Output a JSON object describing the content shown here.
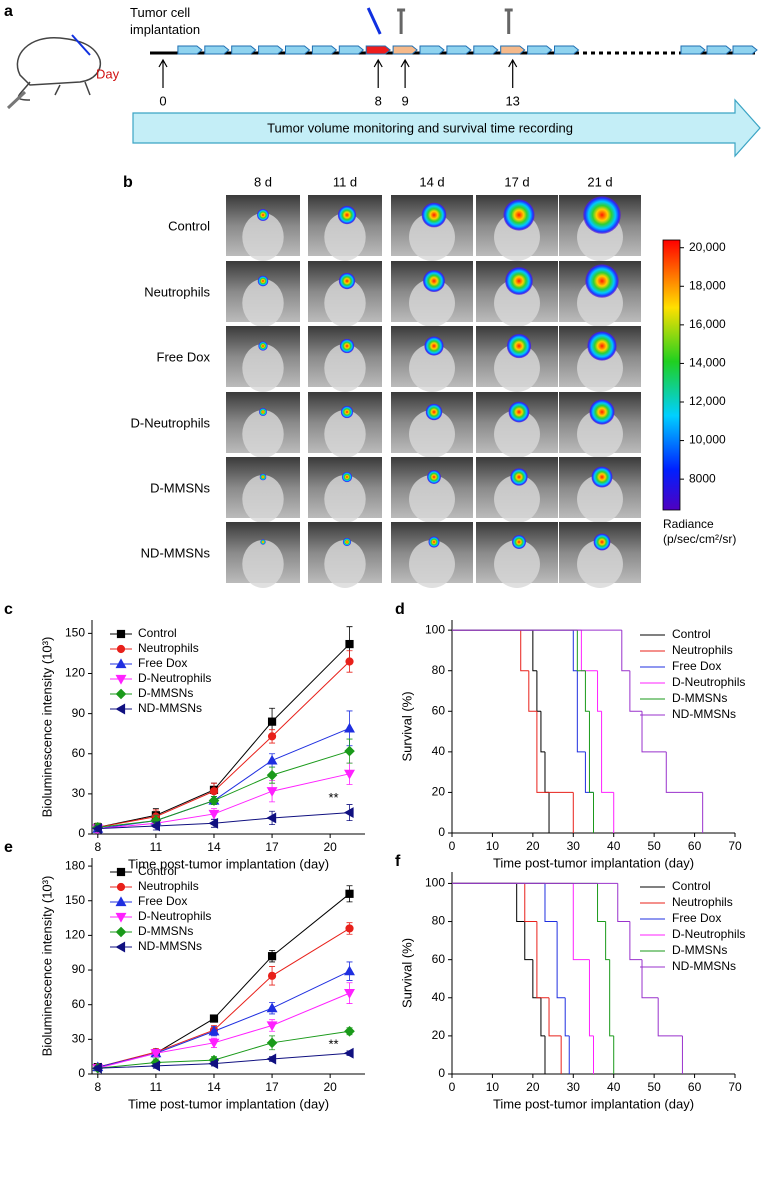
{
  "timeline": {
    "label": "a",
    "title": "Tumor cell implantation",
    "day_label": "Day",
    "days": [
      0,
      8,
      9,
      13
    ],
    "banner": "Tumor volume monitoring and survival time recording"
  },
  "imaging": {
    "label": "b",
    "timepoints": [
      "8 d",
      "11 d",
      "14 d",
      "17 d",
      "21 d"
    ],
    "groups": [
      "Control",
      "Neutrophils",
      "Free Dox",
      "D-Neutrophils",
      "D-MMSNs",
      "ND-MMSNs"
    ],
    "colorbar": {
      "title": "Radiance",
      "unit": "(p/sec/cm²/sr)",
      "lim": [
        6400,
        20400
      ],
      "ticks": [
        {
          "value": 20000,
          "label": "20,000"
        },
        {
          "value": 18000,
          "label": "18,000"
        },
        {
          "value": 16000,
          "label": "16,000"
        },
        {
          "value": 14000,
          "label": "14,000"
        },
        {
          "value": 12000,
          "label": "12,000"
        },
        {
          "value": 10000,
          "label": "10,000"
        },
        8000
      ]
    }
  },
  "chart_data": [
    {
      "type": "line",
      "label": "c",
      "ylabel": "Bioluminescence intensity (10³)",
      "xlabel": "Time post-tumor implantation (day)",
      "x": [
        8,
        11,
        14,
        17,
        21
      ],
      "xlim": [
        7.7,
        21.8
      ],
      "xticks": [
        8,
        11,
        14,
        17,
        20
      ],
      "ylim": [
        0,
        160
      ],
      "yticks": [
        0,
        30,
        60,
        90,
        120,
        150
      ],
      "legend": "upper left",
      "annotation": "**",
      "series": [
        {
          "name": "Control",
          "color": "#000000",
          "marker": "square",
          "values": [
            5,
            14,
            33,
            84,
            142
          ],
          "errors": [
            3,
            5,
            5,
            10,
            13
          ]
        },
        {
          "name": "Neutrophils",
          "color": "#e8201a",
          "marker": "circle",
          "values": [
            5,
            13,
            32,
            73,
            129
          ],
          "errors": [
            3,
            5,
            6,
            5,
            8
          ]
        },
        {
          "name": "Free Dox",
          "color": "#1f2fe0",
          "marker": "triangle-up",
          "values": [
            4,
            10,
            25,
            55,
            79
          ],
          "errors": [
            3,
            4,
            3,
            5,
            13
          ]
        },
        {
          "name": "D-Neutrophils",
          "color": "#ff20ff",
          "marker": "triangle-down",
          "values": [
            4,
            8,
            15,
            32,
            45
          ],
          "errors": [
            3,
            3,
            4,
            8,
            8
          ]
        },
        {
          "name": "D-MMSNs",
          "color": "#1a9a1a",
          "marker": "diamond",
          "values": [
            5,
            10,
            25,
            44,
            62
          ],
          "errors": [
            3,
            4,
            3,
            6,
            9
          ]
        },
        {
          "name": "ND-MMSNs",
          "color": "#101080",
          "marker": "triangle-left",
          "values": [
            4,
            6,
            8,
            12,
            16
          ],
          "errors": [
            2,
            3,
            3,
            5,
            6
          ]
        }
      ]
    },
    {
      "type": "step",
      "label": "d",
      "ylabel": "Survival (%)",
      "xlabel": "Time post-tumor implantation (day)",
      "xlim": [
        0,
        70
      ],
      "xticks": [
        0,
        10,
        20,
        30,
        40,
        50,
        60,
        70
      ],
      "ylim": [
        0,
        105
      ],
      "yticks": [
        0,
        20,
        40,
        60,
        80,
        100
      ],
      "legend": "upper right",
      "series": [
        {
          "name": "Control",
          "color": "#000000",
          "x": [
            0,
            20,
            21,
            22,
            23,
            24
          ],
          "values": [
            100,
            80,
            60,
            40,
            20,
            0
          ]
        },
        {
          "name": "Neutrophils",
          "color": "#e8201a",
          "x": [
            0,
            17,
            19,
            21,
            30
          ],
          "values": [
            100,
            80,
            60,
            20,
            0
          ]
        },
        {
          "name": "Free Dox",
          "color": "#1f2fe0",
          "x": [
            0,
            30,
            31,
            33,
            35
          ],
          "values": [
            100,
            80,
            40,
            20,
            0
          ]
        },
        {
          "name": "D-Neutrophils",
          "color": "#ff20ff",
          "x": [
            0,
            32,
            36,
            37,
            40
          ],
          "values": [
            100,
            80,
            60,
            20,
            0
          ]
        },
        {
          "name": "D-MMSNs",
          "color": "#1a9a1a",
          "x": [
            0,
            31,
            33,
            34,
            35
          ],
          "values": [
            100,
            80,
            60,
            20,
            0
          ]
        },
        {
          "name": "ND-MMSNs",
          "color": "#9932cc",
          "x": [
            0,
            42,
            44,
            47,
            53,
            62
          ],
          "values": [
            100,
            80,
            60,
            40,
            20,
            0
          ]
        }
      ]
    },
    {
      "type": "line",
      "label": "e",
      "ylabel": "Bioluminescence intensity (10³)",
      "xlabel": "Time post-tumor implantation (day)",
      "x": [
        8,
        11,
        14,
        17,
        21
      ],
      "xlim": [
        7.7,
        21.8
      ],
      "xticks": [
        8,
        11,
        14,
        17,
        20
      ],
      "ylim": [
        0,
        187
      ],
      "yticks": [
        0,
        30,
        60,
        90,
        120,
        150,
        180
      ],
      "legend": "upper left",
      "annotation": "**",
      "series": [
        {
          "name": "Control",
          "color": "#000000",
          "marker": "square",
          "values": [
            6,
            18,
            48,
            102,
            156
          ],
          "errors": [
            2,
            3,
            2,
            5,
            7
          ]
        },
        {
          "name": "Neutrophils",
          "color": "#e8201a",
          "marker": "circle",
          "values": [
            6,
            19,
            38,
            85,
            126
          ],
          "errors": [
            2,
            3,
            4,
            8,
            5
          ]
        },
        {
          "name": "Free Dox",
          "color": "#1f2fe0",
          "marker": "triangle-up",
          "values": [
            6,
            18,
            37,
            57,
            89
          ],
          "errors": [
            2,
            3,
            4,
            5,
            8
          ]
        },
        {
          "name": "D-Neutrophils",
          "color": "#ff20ff",
          "marker": "triangle-down",
          "values": [
            5,
            18,
            27,
            42,
            70
          ],
          "errors": [
            2,
            3,
            4,
            5,
            9
          ]
        },
        {
          "name": "D-MMSNs",
          "color": "#1a9a1a",
          "marker": "diamond",
          "values": [
            5,
            10,
            12,
            27,
            37
          ],
          "errors": [
            2,
            3,
            3,
            6,
            3
          ]
        },
        {
          "name": "ND-MMSNs",
          "color": "#101080",
          "marker": "triangle-left",
          "values": [
            5,
            7,
            9,
            13,
            18
          ],
          "errors": [
            2,
            2,
            2,
            2,
            2
          ]
        }
      ]
    },
    {
      "type": "step",
      "label": "f",
      "ylabel": "Survival (%)",
      "xlabel": "Time post-tumor implantation (day)",
      "xlim": [
        0,
        70
      ],
      "xticks": [
        0,
        10,
        20,
        30,
        40,
        50,
        60,
        70
      ],
      "ylim": [
        0,
        106
      ],
      "yticks": [
        0,
        20,
        40,
        60,
        80,
        100
      ],
      "legend": "upper right",
      "series": [
        {
          "name": "Control",
          "color": "#000000",
          "x": [
            0,
            16,
            18,
            20,
            22,
            23
          ],
          "values": [
            100,
            80,
            60,
            40,
            20,
            0
          ]
        },
        {
          "name": "Neutrophils",
          "color": "#e8201a",
          "x": [
            0,
            18,
            21,
            24,
            27
          ],
          "values": [
            100,
            80,
            40,
            20,
            0
          ]
        },
        {
          "name": "Free Dox",
          "color": "#1f2fe0",
          "x": [
            0,
            23,
            26,
            28,
            29
          ],
          "values": [
            100,
            80,
            40,
            20,
            0
          ]
        },
        {
          "name": "D-Neutrophils",
          "color": "#ff20ff",
          "x": [
            0,
            30,
            34,
            35
          ],
          "values": [
            100,
            60,
            20,
            0
          ]
        },
        {
          "name": "D-MMSNs",
          "color": "#1a9a1a",
          "x": [
            0,
            36,
            38,
            39,
            40
          ],
          "values": [
            100,
            80,
            60,
            20,
            0
          ]
        },
        {
          "name": "ND-MMSNs",
          "color": "#9932cc",
          "x": [
            0,
            41,
            44,
            47,
            51,
            57
          ],
          "values": [
            100,
            80,
            60,
            40,
            20,
            0
          ]
        }
      ]
    }
  ]
}
